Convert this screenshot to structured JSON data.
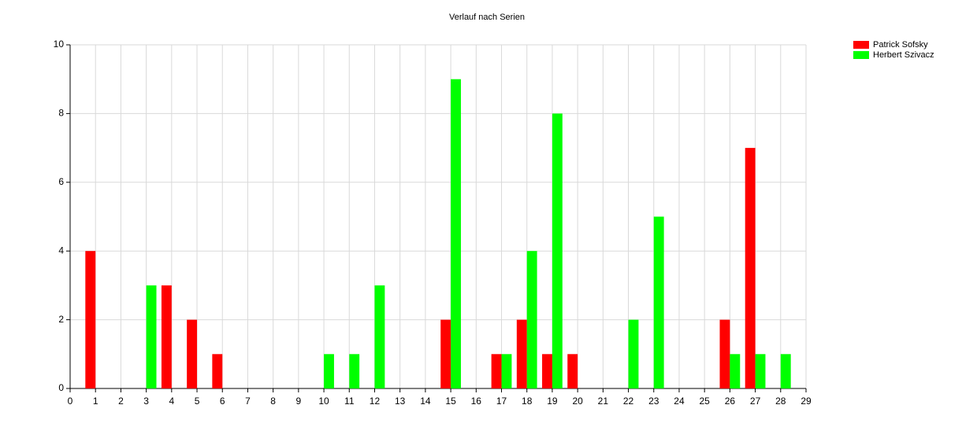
{
  "chart_data": {
    "type": "bar",
    "title": "Verlauf nach Serien",
    "x": [
      1,
      3,
      4,
      5,
      6,
      10,
      11,
      12,
      15,
      17,
      18,
      19,
      20,
      22,
      23,
      26,
      27,
      28
    ],
    "series": [
      {
        "name": "Patrick Sofsky",
        "color": "#ff0000",
        "values": [
          4,
          null,
          3,
          2,
          1,
          null,
          null,
          null,
          2,
          1,
          2,
          1,
          1,
          null,
          null,
          2,
          7,
          null
        ]
      },
      {
        "name": "Herbert Szivacz",
        "color": "#00ff00",
        "values": [
          null,
          3,
          null,
          null,
          null,
          1,
          1,
          3,
          9,
          1,
          4,
          8,
          null,
          2,
          5,
          1,
          1,
          1
        ]
      }
    ],
    "xlim": [
      0,
      29
    ],
    "xticks": [
      0,
      1,
      2,
      3,
      4,
      5,
      6,
      7,
      8,
      9,
      10,
      11,
      12,
      13,
      14,
      15,
      16,
      17,
      18,
      19,
      20,
      21,
      22,
      23,
      24,
      25,
      26,
      27,
      28,
      29
    ],
    "ylim": [
      0,
      10
    ],
    "yticks": [
      0,
      2,
      4,
      6,
      8,
      10
    ],
    "grid": true,
    "legend": "top-right"
  }
}
